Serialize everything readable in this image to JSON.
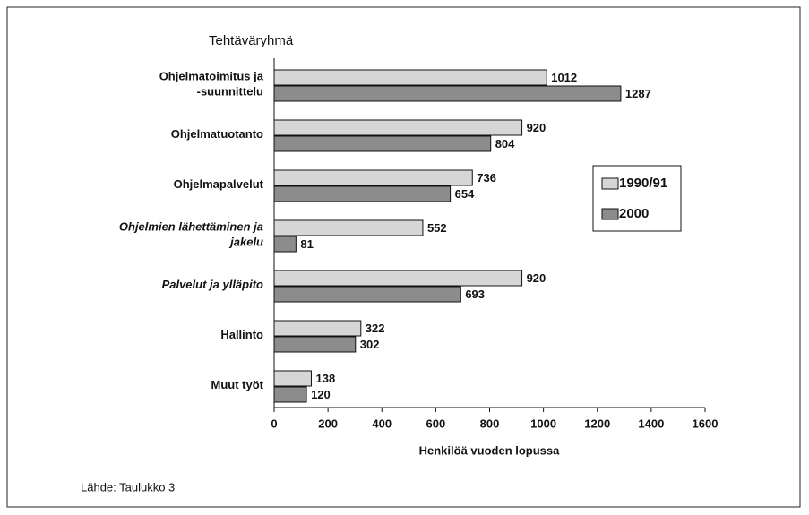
{
  "chart_data": {
    "type": "barh",
    "title": "Tehtäväryhmä",
    "x_label": "Henkilöä vuoden lopussa",
    "source": "Lähde: Taulukko 3",
    "categories": [
      "Ohjelmatoimitus ja\n-suunnittelu",
      "Ohjelmatuotanto",
      "Ohjelmapalvelut",
      "Ohjelmien lähettäminen ja\njakelu",
      "Palvelut  ja ylläpito",
      "Hallinto",
      "Muut työt"
    ],
    "category_styles": [
      "normal",
      "normal",
      "normal",
      "italic",
      "italic",
      "normal",
      "normal"
    ],
    "series": [
      {
        "name": "1990/91",
        "color": "#d6d6d6",
        "values": [
          1012,
          920,
          736,
          552,
          920,
          322,
          138
        ]
      },
      {
        "name": "2000",
        "color": "#8c8c8c",
        "values": [
          1287,
          804,
          654,
          81,
          693,
          302,
          120
        ]
      }
    ],
    "xlim": [
      0,
      1600
    ],
    "xticks": [
      0,
      200,
      400,
      600,
      800,
      1000,
      1200,
      1400,
      1600
    ],
    "grid": false,
    "legend": "right"
  }
}
